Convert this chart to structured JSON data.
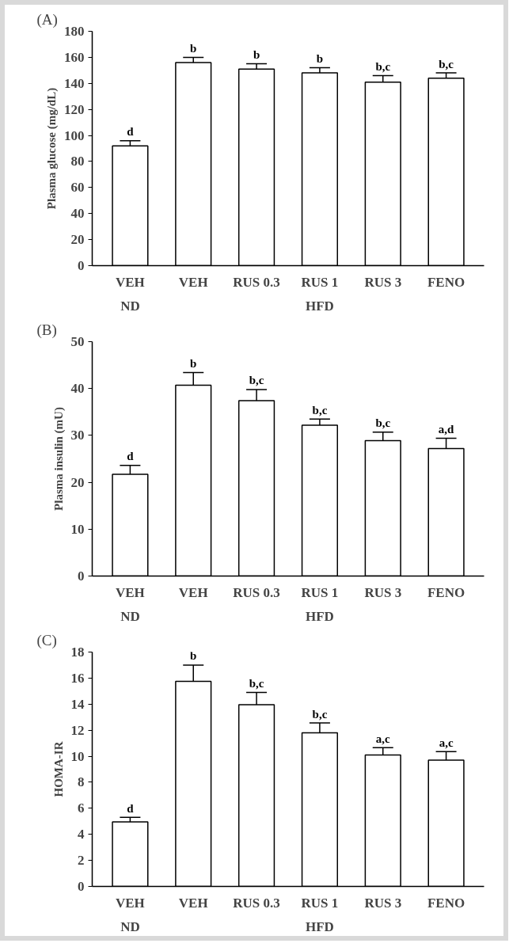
{
  "chart_data": [
    {
      "type": "bar",
      "title": "(A)",
      "ylabel": "Plasma glucose (mg/dL)",
      "categories": [
        "VEH",
        "VEH",
        "RUS 0.3",
        "RUS 1",
        "RUS 3",
        "FENO"
      ],
      "values": [
        92,
        156,
        151,
        148,
        141,
        144
      ],
      "errors": [
        4,
        4,
        4,
        4,
        5,
        4
      ],
      "color": "#ffffff",
      "value_labels": [
        "d",
        "b",
        "b",
        "b",
        "b,c",
        "b,c"
      ],
      "annotations": [
        "ND",
        "HFD"
      ],
      "ylim": [
        0,
        180
      ],
      "yticks": [
        0,
        20,
        40,
        60,
        80,
        100,
        120,
        140,
        160,
        180
      ],
      "grid": false
    },
    {
      "type": "bar",
      "title": "(B)",
      "ylabel": "Plasma insulin (mU)",
      "categories": [
        "VEH",
        "VEH",
        "RUS 0.3",
        "RUS 1",
        "RUS 3",
        "FENO"
      ],
      "values": [
        21.7,
        40.7,
        37.4,
        32.2,
        28.9,
        27.2
      ],
      "errors": [
        1.9,
        2.7,
        2.4,
        1.3,
        1.8,
        2.2
      ],
      "color": "#ffffff",
      "value_labels": [
        "d",
        "b",
        "b,c",
        "b,c",
        "b,c",
        "a,d"
      ],
      "annotations": [
        "ND",
        "HFD"
      ],
      "ylim": [
        0,
        50
      ],
      "yticks": [
        0,
        10,
        20,
        30,
        40,
        50
      ],
      "grid": false
    },
    {
      "type": "bar",
      "title": "(C)",
      "ylabel": "HOMA-IR",
      "categories": [
        "VEH",
        "VEH",
        "RUS 0.3",
        "RUS 1",
        "RUS 3",
        "FENO"
      ],
      "values": [
        4.95,
        15.75,
        13.95,
        11.8,
        10.1,
        9.7
      ],
      "errors": [
        0.35,
        1.25,
        0.95,
        0.75,
        0.55,
        0.65
      ],
      "color": "#ffffff",
      "value_labels": [
        "d",
        "b",
        "b,c",
        "b,c",
        "a,c",
        "a,c"
      ],
      "annotations": [
        "ND",
        "HFD"
      ],
      "ylim": [
        0,
        18
      ],
      "yticks": [
        0,
        2,
        4,
        6,
        8,
        10,
        12,
        14,
        16,
        18
      ],
      "grid": false
    }
  ]
}
